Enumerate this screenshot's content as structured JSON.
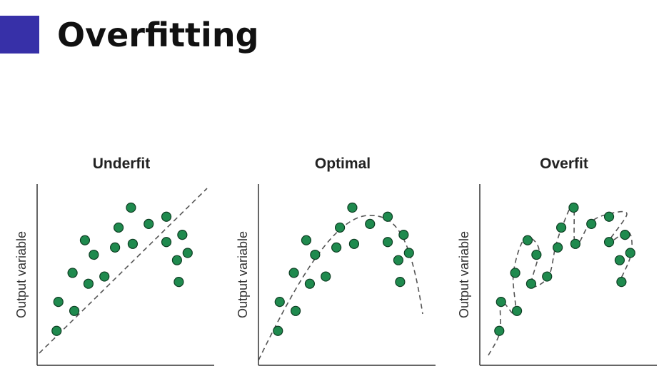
{
  "slide": {
    "title": "Overfitting"
  },
  "chart_data": [
    {
      "type": "scatter",
      "title": "Underfit",
      "y_label": "Output variable",
      "color": "#1f8a4e",
      "x": [
        11,
        12,
        21,
        20,
        27,
        29,
        32,
        38,
        44,
        46,
        53,
        54,
        63,
        73,
        73,
        79,
        82,
        85,
        80
      ],
      "values": [
        19,
        35,
        30,
        51,
        69,
        45,
        61,
        49,
        65,
        76,
        87,
        67,
        78,
        82,
        68,
        58,
        72,
        62,
        46
      ],
      "xlim": [
        0,
        100
      ],
      "ylim": [
        0,
        100
      ]
    },
    {
      "type": "scatter",
      "title": "Optimal",
      "y_label": "Output variable",
      "color": "#1f8a4e",
      "x": [
        11,
        12,
        21,
        20,
        27,
        29,
        32,
        38,
        44,
        46,
        53,
        54,
        63,
        73,
        73,
        79,
        82,
        85,
        80
      ],
      "values": [
        19,
        35,
        30,
        51,
        69,
        45,
        61,
        49,
        65,
        76,
        87,
        67,
        78,
        82,
        68,
        58,
        72,
        62,
        46
      ],
      "xlim": [
        0,
        100
      ],
      "ylim": [
        0,
        100
      ]
    },
    {
      "type": "scatter",
      "title": "Overfit",
      "y_label": "Output variable",
      "color": "#1f8a4e",
      "x": [
        11,
        12,
        21,
        20,
        27,
        29,
        32,
        38,
        44,
        46,
        53,
        54,
        63,
        73,
        73,
        79,
        82,
        85,
        80
      ],
      "values": [
        19,
        35,
        30,
        51,
        69,
        45,
        61,
        49,
        65,
        76,
        87,
        67,
        78,
        82,
        68,
        58,
        72,
        62,
        46
      ],
      "xlim": [
        0,
        100
      ],
      "ylim": [
        0,
        100
      ]
    }
  ]
}
